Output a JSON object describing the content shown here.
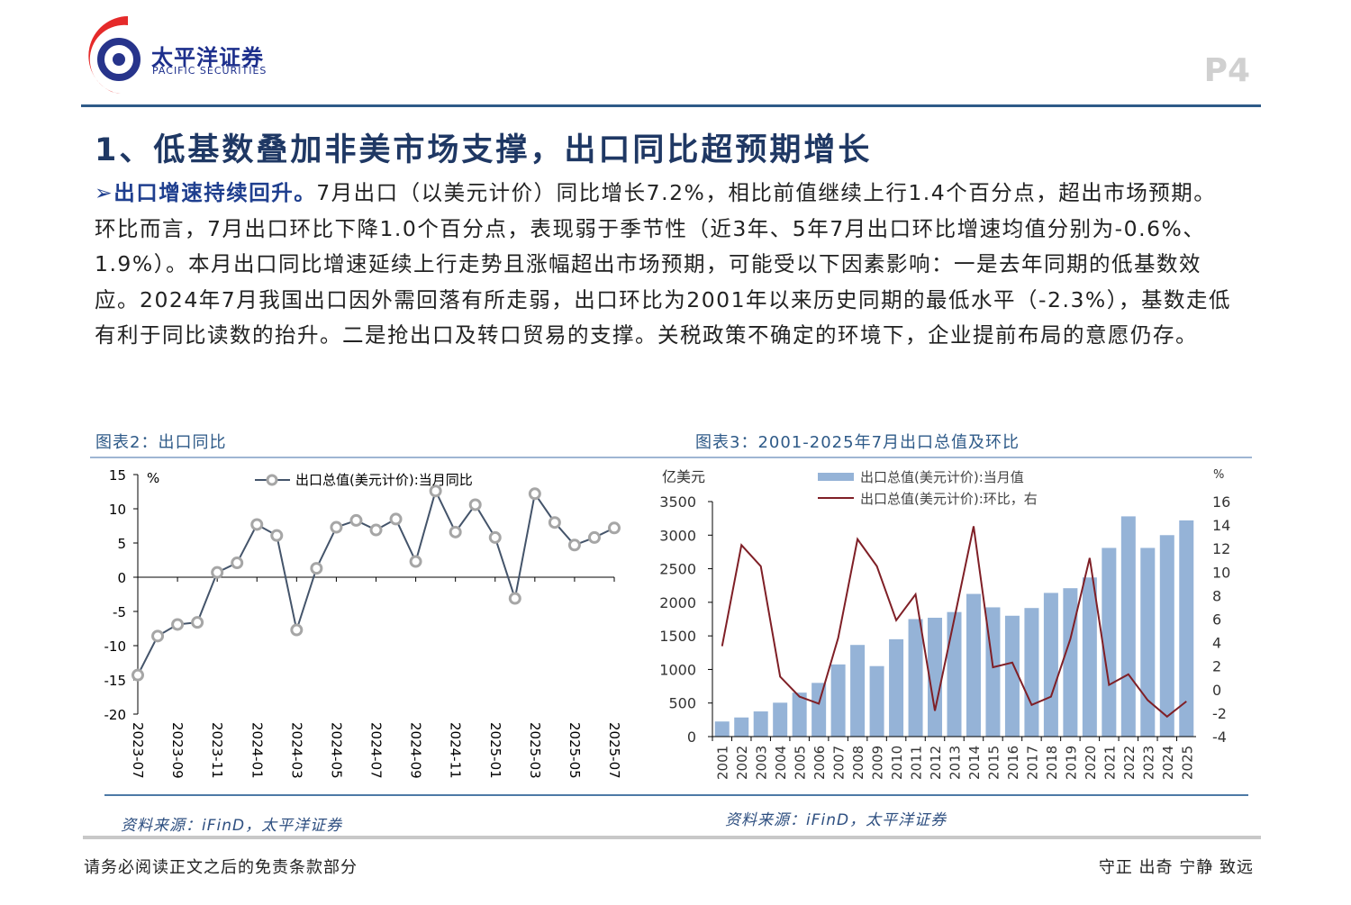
{
  "header": {
    "logo_cn": "太平洋证券",
    "logo_en": "PACIFIC SECURITIES",
    "page_number": "P4"
  },
  "section_title": "1、低基数叠加非美市场支撑，出口同比超预期增长",
  "body": {
    "bullet": "➢",
    "lead": "出口增速持续回升。",
    "text": "7月出口（以美元计价）同比增长7.2%，相比前值继续上行1.4个百分点，超出市场预期。环比而言，7月出口环比下降1.0个百分点，表现弱于季节性（近3年、5年7月出口环比增速均值分别为-0.6%、1.9%）。本月出口同比增速延续上行走势且涨幅超出市场预期，可能受以下因素影响：一是去年同期的低基数效应。2024年7月我国出口因外需回落有所走弱，出口环比为2001年以来历史同期的最低水平（-2.3%），基数走低有利于同比读数的抬升。二是抢出口及转口贸易的支撑。关税政策不确定的环境下，企业提前布局的意愿仍存。"
  },
  "chart_titles": [
    "图表2：出口同比",
    "图表3：2001-2025年7月出口总值及环比"
  ],
  "chart_data": [
    {
      "type": "line",
      "unit_label": "%",
      "ylim": [
        -20,
        15
      ],
      "yticks": [
        15,
        10,
        5,
        0,
        -5,
        -10,
        -15,
        -20
      ],
      "x": [
        "2023-07",
        "2023-08",
        "2023-09",
        "2023-10",
        "2023-11",
        "2023-12",
        "2024-01",
        "2024-02",
        "2024-03",
        "2024-04",
        "2024-05",
        "2024-06",
        "2024-07",
        "2024-08",
        "2024-09",
        "2024-10",
        "2024-11",
        "2024-12",
        "2025-01",
        "2025-02",
        "2025-03",
        "2025-04",
        "2025-05",
        "2025-06",
        "2025-07"
      ],
      "xtick_labels": [
        "2023-07",
        "2023-09",
        "2023-11",
        "2024-01",
        "2024-03",
        "2024-05",
        "2024-07",
        "2024-09",
        "2024-11",
        "2025-01",
        "2025-03",
        "2025-05",
        "2025-07"
      ],
      "series": [
        {
          "name": "出口总值(美元计价):当月同比",
          "values": [
            -14.3,
            -8.6,
            -6.9,
            -6.6,
            0.7,
            2.1,
            7.7,
            6.1,
            -7.7,
            1.3,
            7.3,
            8.3,
            6.9,
            8.5,
            2.3,
            12.6,
            6.6,
            10.6,
            5.8,
            -3.1,
            12.2,
            8.0,
            4.7,
            5.8,
            7.2
          ]
        }
      ],
      "colors": {
        "line": "#44546a",
        "marker": "#a6a6a6"
      },
      "legend": "top"
    },
    {
      "type": "bar+line",
      "left_unit": "亿美元",
      "right_unit": "%",
      "ylim_left": [
        0,
        3500
      ],
      "yticks_left": [
        3500,
        3000,
        2500,
        2000,
        1500,
        1000,
        500,
        0
      ],
      "ylim_right": [
        -4,
        16
      ],
      "yticks_right": [
        16,
        14,
        12,
        10,
        8,
        6,
        4,
        2,
        0,
        -2,
        -4
      ],
      "categories": [
        "2001",
        "2002",
        "2003",
        "2004",
        "2005",
        "2006",
        "2007",
        "2008",
        "2009",
        "2010",
        "2011",
        "2012",
        "2013",
        "2014",
        "2015",
        "2016",
        "2017",
        "2018",
        "2019",
        "2020",
        "2021",
        "2022",
        "2023",
        "2024",
        "2025"
      ],
      "series": [
        {
          "name": "出口总值(美元计价):当月值",
          "axis": "left",
          "kind": "bar",
          "values": [
            225,
            285,
            375,
            505,
            655,
            800,
            1075,
            1365,
            1050,
            1450,
            1750,
            1770,
            1855,
            2125,
            1925,
            1800,
            1915,
            2140,
            2210,
            2370,
            2810,
            3280,
            2810,
            3000,
            3220
          ]
        },
        {
          "name": "出口总值(美元计价):环比，右",
          "axis": "right",
          "kind": "line",
          "values": [
            3.7,
            12.3,
            10.5,
            1.1,
            -0.6,
            -1.2,
            4.4,
            12.8,
            10.5,
            5.9,
            8.1,
            -1.8,
            6.0,
            13.9,
            1.9,
            2.3,
            -1.3,
            -0.6,
            4.3,
            11.2,
            0.4,
            1.3,
            -0.9,
            -2.3,
            -1.0
          ]
        }
      ],
      "colors": {
        "bar": "#95b3d7",
        "line": "#7f1f26"
      },
      "legend": "top"
    }
  ],
  "sources": [
    "资料来源：iFinD，太平洋证券",
    "资料来源：iFinD，太平洋证券"
  ],
  "footer": {
    "disclaimer": "请务必阅读正文之后的免责条款部分",
    "motto": "守正 出奇 宁静 致远"
  }
}
